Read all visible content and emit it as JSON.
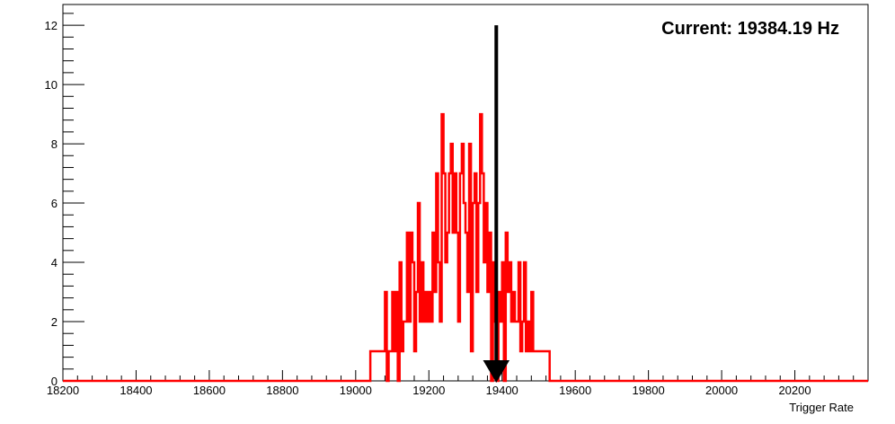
{
  "chart_data": {
    "type": "histogram",
    "xlabel": "Trigger Rate",
    "ylabel": "",
    "xlim": [
      18200,
      20400
    ],
    "ylim": [
      0,
      12.7
    ],
    "x_ticks": [
      18200,
      18400,
      18600,
      18800,
      19000,
      19200,
      19400,
      19600,
      19800,
      20000,
      20200
    ],
    "y_ticks": [
      0,
      2,
      4,
      6,
      8,
      10,
      12
    ],
    "grid": false,
    "legend": "none",
    "bin_width": 5,
    "bins": [
      {
        "x": 19040,
        "y": 1
      },
      {
        "x": 19045,
        "y": 1
      },
      {
        "x": 19050,
        "y": 1
      },
      {
        "x": 19055,
        "y": 1
      },
      {
        "x": 19060,
        "y": 1
      },
      {
        "x": 19065,
        "y": 1
      },
      {
        "x": 19070,
        "y": 1
      },
      {
        "x": 19075,
        "y": 1
      },
      {
        "x": 19080,
        "y": 3
      },
      {
        "x": 19085,
        "y": 0
      },
      {
        "x": 19090,
        "y": 1
      },
      {
        "x": 19095,
        "y": 1
      },
      {
        "x": 19100,
        "y": 3
      },
      {
        "x": 19105,
        "y": 1
      },
      {
        "x": 19110,
        "y": 3
      },
      {
        "x": 19115,
        "y": 0
      },
      {
        "x": 19120,
        "y": 4
      },
      {
        "x": 19125,
        "y": 1
      },
      {
        "x": 19130,
        "y": 2
      },
      {
        "x": 19135,
        "y": 2
      },
      {
        "x": 19140,
        "y": 5
      },
      {
        "x": 19145,
        "y": 2
      },
      {
        "x": 19150,
        "y": 5
      },
      {
        "x": 19155,
        "y": 4
      },
      {
        "x": 19160,
        "y": 1
      },
      {
        "x": 19165,
        "y": 3
      },
      {
        "x": 19170,
        "y": 6
      },
      {
        "x": 19175,
        "y": 2
      },
      {
        "x": 19180,
        "y": 4
      },
      {
        "x": 19185,
        "y": 2
      },
      {
        "x": 19190,
        "y": 3
      },
      {
        "x": 19195,
        "y": 2
      },
      {
        "x": 19200,
        "y": 3
      },
      {
        "x": 19205,
        "y": 2
      },
      {
        "x": 19210,
        "y": 5
      },
      {
        "x": 19215,
        "y": 3
      },
      {
        "x": 19220,
        "y": 7
      },
      {
        "x": 19225,
        "y": 4
      },
      {
        "x": 19230,
        "y": 2
      },
      {
        "x": 19235,
        "y": 9
      },
      {
        "x": 19240,
        "y": 7
      },
      {
        "x": 19245,
        "y": 4
      },
      {
        "x": 19250,
        "y": 5
      },
      {
        "x": 19255,
        "y": 7
      },
      {
        "x": 19260,
        "y": 8
      },
      {
        "x": 19265,
        "y": 5
      },
      {
        "x": 19270,
        "y": 7
      },
      {
        "x": 19275,
        "y": 5
      },
      {
        "x": 19280,
        "y": 2
      },
      {
        "x": 19285,
        "y": 7
      },
      {
        "x": 19290,
        "y": 8
      },
      {
        "x": 19295,
        "y": 6
      },
      {
        "x": 19300,
        "y": 5
      },
      {
        "x": 19305,
        "y": 3
      },
      {
        "x": 19310,
        "y": 8
      },
      {
        "x": 19315,
        "y": 1
      },
      {
        "x": 19320,
        "y": 6
      },
      {
        "x": 19325,
        "y": 7
      },
      {
        "x": 19330,
        "y": 3
      },
      {
        "x": 19335,
        "y": 6
      },
      {
        "x": 19340,
        "y": 9
      },
      {
        "x": 19345,
        "y": 7
      },
      {
        "x": 19350,
        "y": 4
      },
      {
        "x": 19355,
        "y": 6
      },
      {
        "x": 19360,
        "y": 3
      },
      {
        "x": 19365,
        "y": 5
      },
      {
        "x": 19370,
        "y": 0
      },
      {
        "x": 19375,
        "y": 4
      },
      {
        "x": 19380,
        "y": 2
      },
      {
        "x": 19385,
        "y": 0
      },
      {
        "x": 19390,
        "y": 3
      },
      {
        "x": 19395,
        "y": 2
      },
      {
        "x": 19400,
        "y": 4
      },
      {
        "x": 19405,
        "y": 0
      },
      {
        "x": 19410,
        "y": 5
      },
      {
        "x": 19415,
        "y": 3
      },
      {
        "x": 19420,
        "y": 4
      },
      {
        "x": 19425,
        "y": 2
      },
      {
        "x": 19430,
        "y": 3
      },
      {
        "x": 19435,
        "y": 2
      },
      {
        "x": 19440,
        "y": 2
      },
      {
        "x": 19445,
        "y": 4
      },
      {
        "x": 19450,
        "y": 1
      },
      {
        "x": 19455,
        "y": 2
      },
      {
        "x": 19460,
        "y": 4
      },
      {
        "x": 19465,
        "y": 1
      },
      {
        "x": 19470,
        "y": 2
      },
      {
        "x": 19475,
        "y": 1
      },
      {
        "x": 19480,
        "y": 3
      },
      {
        "x": 19485,
        "y": 1
      },
      {
        "x": 19490,
        "y": 1
      },
      {
        "x": 19495,
        "y": 1
      },
      {
        "x": 19500,
        "y": 1
      },
      {
        "x": 19505,
        "y": 1
      },
      {
        "x": 19510,
        "y": 1
      },
      {
        "x": 19515,
        "y": 1
      },
      {
        "x": 19520,
        "y": 1
      },
      {
        "x": 19525,
        "y": 1
      }
    ],
    "annotations": [
      {
        "text": "Current: 19384.19 Hz",
        "marker_x": 19384.19,
        "marker_from_y": 12,
        "marker_to_y": 0
      }
    ]
  },
  "colors": {
    "histogram_line": "#ff0000",
    "arrow": "#000000",
    "axis": "#000000",
    "background": "#ffffff"
  }
}
